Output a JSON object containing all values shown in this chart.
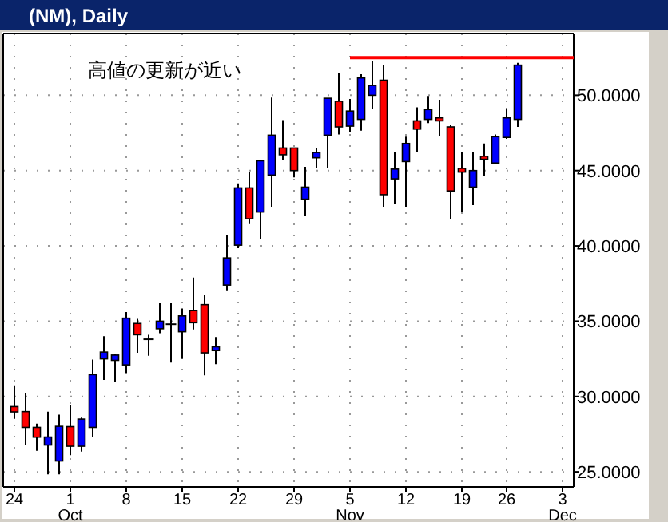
{
  "chart_data": {
    "type": "candlestick",
    "title": "(NM), Daily",
    "annotations": [
      "高値の更新が近い"
    ],
    "categories": [
      "24",
      null,
      null,
      null,
      null,
      "1\nOct",
      null,
      null,
      null,
      null,
      "8",
      null,
      null,
      null,
      null,
      "15",
      null,
      null,
      null,
      null,
      "22",
      null,
      null,
      null,
      null,
      "29",
      null,
      null,
      null,
      null,
      "5\nNov",
      null,
      null,
      null,
      null,
      "12",
      null,
      null,
      null,
      null,
      "19",
      null,
      null,
      null,
      "26",
      null,
      null,
      null,
      null,
      "3\nDec",
      null
    ],
    "ohlc": [
      [
        29.33,
        30.74,
        28.52,
        28.98
      ],
      [
        29.0,
        30.2,
        26.75,
        27.95
      ],
      [
        27.95,
        28.2,
        26.4,
        27.3
      ],
      [
        26.78,
        29.0,
        24.84,
        27.31
      ],
      [
        25.72,
        28.8,
        24.84,
        28.02
      ],
      [
        28.0,
        29.4,
        26.1,
        26.7
      ],
      [
        26.7,
        28.6,
        26.35,
        28.5
      ],
      [
        27.95,
        32.45,
        27.3,
        31.45
      ],
      [
        32.5,
        34.0,
        31.1,
        32.95
      ],
      [
        32.4,
        32.8,
        31.0,
        32.75
      ],
      [
        32.1,
        35.6,
        31.55,
        35.2
      ],
      [
        34.85,
        35.15,
        32.9,
        34.1
      ],
      [
        33.8,
        34.1,
        32.7,
        33.8
      ],
      [
        34.5,
        36.2,
        34.2,
        35.0
      ],
      [
        34.8,
        36.2,
        32.25,
        34.8
      ],
      [
        34.3,
        35.85,
        32.5,
        35.35
      ],
      [
        35.7,
        37.9,
        34.45,
        34.9
      ],
      [
        36.1,
        36.75,
        31.4,
        32.9
      ],
      [
        33.05,
        33.95,
        32.15,
        33.3
      ],
      [
        37.4,
        40.75,
        37.05,
        39.2
      ],
      [
        40.05,
        44.15,
        39.85,
        43.85
      ],
      [
        43.85,
        44.9,
        41.45,
        41.8
      ],
      [
        42.25,
        45.65,
        40.45,
        45.65
      ],
      [
        44.7,
        49.85,
        42.6,
        47.35
      ],
      [
        46.5,
        48.35,
        45.7,
        46.05
      ],
      [
        46.5,
        46.5,
        44.55,
        45.0
      ],
      [
        43.1,
        45.25,
        42.0,
        43.9
      ],
      [
        45.85,
        46.5,
        45.15,
        46.2
      ],
      [
        47.35,
        49.8,
        45.15,
        49.8
      ],
      [
        49.6,
        51.5,
        47.4,
        47.9
      ],
      [
        47.95,
        49.75,
        47.55,
        48.95
      ],
      [
        48.4,
        51.4,
        47.65,
        51.15
      ],
      [
        50.0,
        52.3,
        49.1,
        50.65
      ],
      [
        51.0,
        52.0,
        42.6,
        43.4
      ],
      [
        44.45,
        46.2,
        42.8,
        45.1
      ],
      [
        45.6,
        47.25,
        42.6,
        46.8
      ],
      [
        48.3,
        49.2,
        46.2,
        47.75
      ],
      [
        48.4,
        49.95,
        48.15,
        49.05
      ],
      [
        48.5,
        49.7,
        47.3,
        48.3
      ],
      [
        47.9,
        48.0,
        41.75,
        43.65
      ],
      [
        45.15,
        46.2,
        42.25,
        44.9
      ],
      [
        43.9,
        46.2,
        42.7,
        45.0
      ],
      [
        45.95,
        46.8,
        44.65,
        45.75
      ],
      [
        45.5,
        47.4,
        45.5,
        47.25
      ],
      [
        47.2,
        49.15,
        47.1,
        48.5
      ],
      [
        48.4,
        52.15,
        47.9,
        52.0
      ],
      null,
      null,
      null,
      null,
      null
    ],
    "colors": [
      "#ff0000",
      "#ff0000",
      "#ff0000",
      "#0000ff",
      "#0000ff",
      "#ff0000",
      "#0000ff",
      "#0000ff",
      "#0000ff",
      "#0000ff",
      "#0000ff",
      "#ff0000",
      "#000000",
      "#0000ff",
      "#000000",
      "#0000ff",
      "#ff0000",
      "#ff0000",
      "#0000ff",
      "#0000ff",
      "#0000ff",
      "#ff0000",
      "#0000ff",
      "#0000ff",
      "#ff0000",
      "#ff0000",
      "#0000ff",
      "#0000ff",
      "#0000ff",
      "#ff0000",
      "#0000ff",
      "#0000ff",
      "#0000ff",
      "#ff0000",
      "#0000ff",
      "#0000ff",
      "#ff0000",
      "#0000ff",
      "#ff0000",
      "#ff0000",
      "#ff0000",
      "#0000ff",
      "#ff0000",
      "#0000ff",
      "#0000ff",
      "#0000ff",
      null,
      null,
      null,
      null,
      null
    ],
    "series": [
      {
        "type": "line",
        "color": "#ff0000",
        "values": [
          null,
          null,
          null,
          null,
          null,
          null,
          null,
          null,
          null,
          null,
          null,
          null,
          null,
          null,
          null,
          null,
          null,
          null,
          null,
          null,
          null,
          null,
          null,
          null,
          null,
          null,
          null,
          null,
          null,
          null,
          52.5,
          52.5,
          52.5,
          52.5,
          52.5,
          52.5,
          52.5,
          52.5,
          52.5,
          52.5,
          52.5,
          52.5,
          52.5,
          52.5,
          52.5,
          52.5,
          52.5,
          52.5,
          52.5,
          52.5,
          52.5
        ]
      }
    ],
    "ylim": [
      24.0,
      54.1
    ],
    "yticks": [
      {
        "value": 25,
        "label": "25.0000"
      },
      {
        "value": 30,
        "label": "30.0000"
      },
      {
        "value": 35,
        "label": "35.0000"
      },
      {
        "value": 40,
        "label": "40.0000"
      },
      {
        "value": 45,
        "label": "45.0000"
      },
      {
        "value": 50,
        "label": "50.0000"
      }
    ],
    "grid": true
  }
}
